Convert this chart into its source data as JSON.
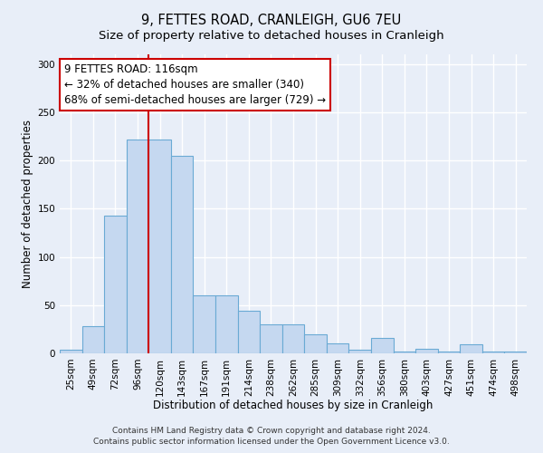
{
  "title": "9, FETTES ROAD, CRANLEIGH, GU6 7EU",
  "subtitle": "Size of property relative to detached houses in Cranleigh",
  "xlabel": "Distribution of detached houses by size in Cranleigh",
  "ylabel": "Number of detached properties",
  "bar_labels": [
    "25sqm",
    "49sqm",
    "72sqm",
    "96sqm",
    "120sqm",
    "143sqm",
    "167sqm",
    "191sqm",
    "214sqm",
    "238sqm",
    "262sqm",
    "285sqm",
    "309sqm",
    "332sqm",
    "356sqm",
    "380sqm",
    "403sqm",
    "427sqm",
    "451sqm",
    "474sqm",
    "498sqm"
  ],
  "bar_values": [
    4,
    28,
    143,
    222,
    222,
    205,
    60,
    60,
    44,
    30,
    30,
    20,
    10,
    4,
    16,
    2,
    5,
    2,
    9,
    2,
    2
  ],
  "bar_color": "#c5d8f0",
  "bar_edge_color": "#6aaad4",
  "vline_index": 4,
  "vline_color": "#cc0000",
  "annotation_line1": "9 FETTES ROAD: 116sqm",
  "annotation_line2": "← 32% of detached houses are smaller (340)",
  "annotation_line3": "68% of semi-detached houses are larger (729) →",
  "annotation_box_color": "#ffffff",
  "annotation_box_edge": "#cc0000",
  "ylim": [
    0,
    310
  ],
  "yticks": [
    0,
    50,
    100,
    150,
    200,
    250,
    300
  ],
  "footer1": "Contains HM Land Registry data © Crown copyright and database right 2024.",
  "footer2": "Contains public sector information licensed under the Open Government Licence v3.0.",
  "background_color": "#e8eef8",
  "plot_bg_color": "#e8eef8",
  "grid_color": "#ffffff",
  "title_fontsize": 10.5,
  "subtitle_fontsize": 9.5,
  "xlabel_fontsize": 8.5,
  "ylabel_fontsize": 8.5,
  "tick_fontsize": 7.5,
  "annotation_fontsize": 8.5,
  "footer_fontsize": 6.5
}
